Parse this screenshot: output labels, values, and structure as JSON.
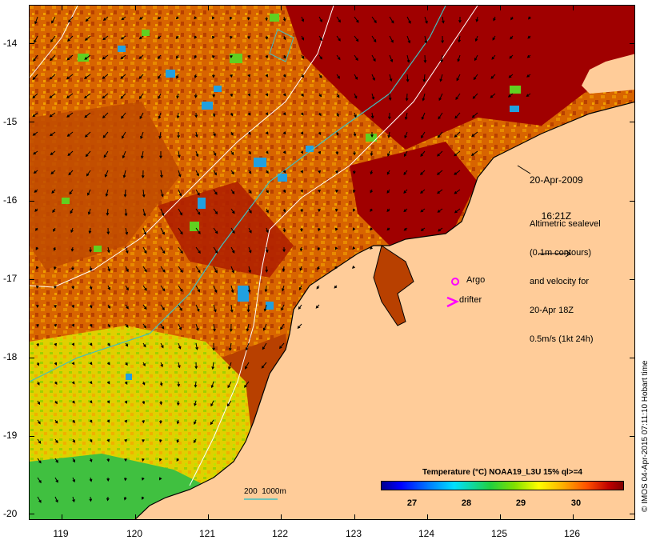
{
  "map": {
    "lat_ticks": [
      "-14",
      "-15",
      "-16",
      "-17",
      "-18",
      "-19",
      "-20"
    ],
    "lon_ticks": [
      "119",
      "120",
      "121",
      "122",
      "123",
      "124",
      "125",
      "126"
    ]
  },
  "annotations": {
    "date": "20-Apr-2009",
    "time": "16:21Z",
    "sealevel_line1": "Altimetric sealevel",
    "sealevel_line2": "(0.1m contours)",
    "sealevel_line3": "and velocity for",
    "sealevel_line4": "20-Apr 18Z",
    "sealevel_line5": "0.5m/s (1kt 24h)",
    "argo": "Argo",
    "drifter": "drifter",
    "contour_legend": "200  1000m"
  },
  "colorbar": {
    "title": "Temperature (°C) NOAA19_L3U 15% ql>=4",
    "labels": [
      "27",
      "28",
      "29",
      "30"
    ]
  },
  "credit": "© IMOS 04-Apr-2015 07:11:10 Hobart time",
  "colors": {
    "land": "#ffcc99",
    "warm_dark": "#a00000",
    "warm_orange": "#e07800",
    "cool_yellow": "#e8e800",
    "cool_green": "#40c040",
    "cool_blue": "#20a0e0",
    "contour_200": "#40c0c0",
    "contour_1000": "#ffffff",
    "argo_marker": "#ff00ff",
    "drifter_marker": "#ff00ff"
  }
}
